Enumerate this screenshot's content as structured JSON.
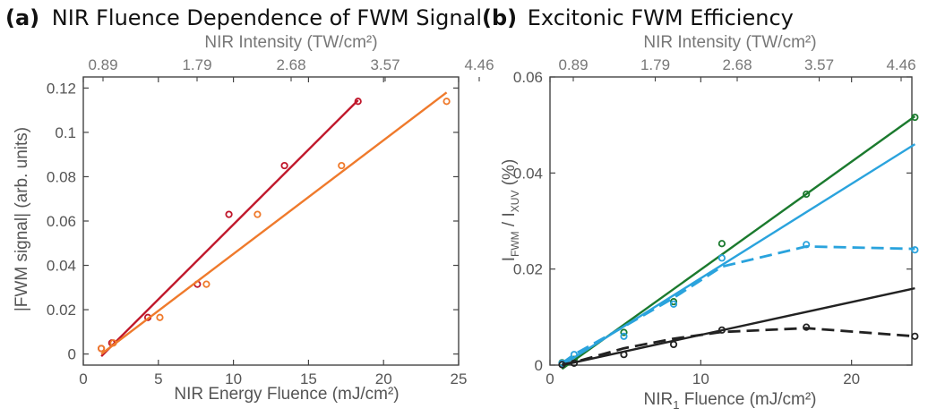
{
  "chart_data": [
    {
      "type": "scatter",
      "panel": "(a)",
      "title": "NIR Fluence Dependence of FWM Signal",
      "xlabel": "NIR Energy Fluence (mJ/cm²)",
      "ylabel": "|FWM signal| (arb. units)",
      "top_xlabel": "NIR Intensity (TW/cm²)",
      "top_xticks": [
        "0.89",
        "1.79",
        "2.68",
        "3.57",
        "4.46"
      ],
      "xlim": [
        0,
        25
      ],
      "ylim": [
        -0.005,
        0.125
      ],
      "xticks": [
        "0",
        "5",
        "10",
        "15",
        "20",
        "25"
      ],
      "yticks": [
        "0",
        "0.02",
        "0.04",
        "0.06",
        "0.08",
        "0.1",
        "0.12"
      ],
      "grid": false,
      "colors": {
        "series1": "#c0172b",
        "series2": "#ef7a2c",
        "axis": "#444444"
      },
      "series": [
        {
          "x": [
            1.2,
            1.9,
            4.3,
            7.6,
            9.7,
            13.4,
            18.3
          ],
          "y": [
            0.0025,
            0.005,
            0.0165,
            0.0315,
            0.063,
            0.085,
            0.114
          ],
          "fit": [
            [
              1.2,
              -0.001
            ],
            [
              18.3,
              0.1145
            ]
          ]
        },
        {
          "x": [
            1.2,
            2.0,
            5.1,
            8.2,
            11.6,
            17.2,
            24.2
          ],
          "y": [
            0.0025,
            0.005,
            0.0165,
            0.0315,
            0.063,
            0.085,
            0.114
          ],
          "fit": [
            [
              1.2,
              0.0
            ],
            [
              24.2,
              0.118
            ]
          ]
        }
      ]
    },
    {
      "type": "scatter",
      "panel": "(b)",
      "title": "Excitonic FWM Efficiency",
      "xlabel_main": "NIR",
      "xlabel_sub": "1",
      "xlabel_rest": " Fluence (mJ/cm²)",
      "ylabel_i1": "I",
      "ylabel_sub1": "FWM",
      "ylabel_mid": " / I",
      "ylabel_sub2": "XUV",
      "ylabel_rest": " (%)",
      "top_xlabel": "NIR Intensity (TW/cm²)",
      "top_xticks": [
        "0.89",
        "1.79",
        "2.68",
        "3.57",
        "4.46"
      ],
      "xlim": [
        0,
        24
      ],
      "ylim": [
        0,
        0.06
      ],
      "xticks": [
        "0",
        "10",
        "20"
      ],
      "yticks": [
        "0",
        "0.02",
        "0.04",
        "0.06"
      ],
      "grid": false,
      "colors": {
        "green": "#1b7a2e",
        "blue": "#2aa3dd",
        "black": "#222222",
        "axis": "#444444"
      },
      "series": [
        {
          "color": "green",
          "x": [
            0.8,
            1.6,
            4.9,
            8.2,
            11.4,
            17.0,
            24.2
          ],
          "y": [
            0.0005,
            0.0012,
            0.0068,
            0.0132,
            0.0253,
            0.0356,
            0.0516
          ],
          "fit": [
            [
              0.8,
              -0.0008
            ],
            [
              24.2,
              0.0518
            ]
          ]
        },
        {
          "color": "blue",
          "x": [
            0.8,
            1.6,
            4.9,
            8.2,
            11.4,
            17.0,
            24.2
          ],
          "y": [
            0.0004,
            0.0022,
            0.006,
            0.0127,
            0.0223,
            0.0251,
            0.024
          ],
          "fit": [
            [
              0.8,
              0.0
            ],
            [
              24.2,
              0.046
            ]
          ],
          "model": [
            [
              0.8,
              0.0004
            ],
            [
              1.6,
              0.0022
            ],
            [
              4.9,
              0.008
            ],
            [
              8.2,
              0.014
            ],
            [
              11.4,
              0.0205
            ],
            [
              17.0,
              0.0247
            ],
            [
              24.2,
              0.0242
            ]
          ]
        },
        {
          "color": "black",
          "x": [
            0.8,
            1.6,
            4.9,
            8.2,
            11.4,
            17.0,
            24.2
          ],
          "y": [
            0.0001,
            0.0004,
            0.0022,
            0.0043,
            0.0073,
            0.0079,
            0.006
          ],
          "fit": [
            [
              0.8,
              0.0
            ],
            [
              24.2,
              0.016
            ]
          ],
          "model": [
            [
              0.8,
              0.0001
            ],
            [
              1.6,
              0.0006
            ],
            [
              4.9,
              0.0035
            ],
            [
              8.2,
              0.0055
            ],
            [
              11.4,
              0.0069
            ],
            [
              17.0,
              0.0077
            ],
            [
              24.2,
              0.006
            ]
          ]
        }
      ]
    }
  ]
}
